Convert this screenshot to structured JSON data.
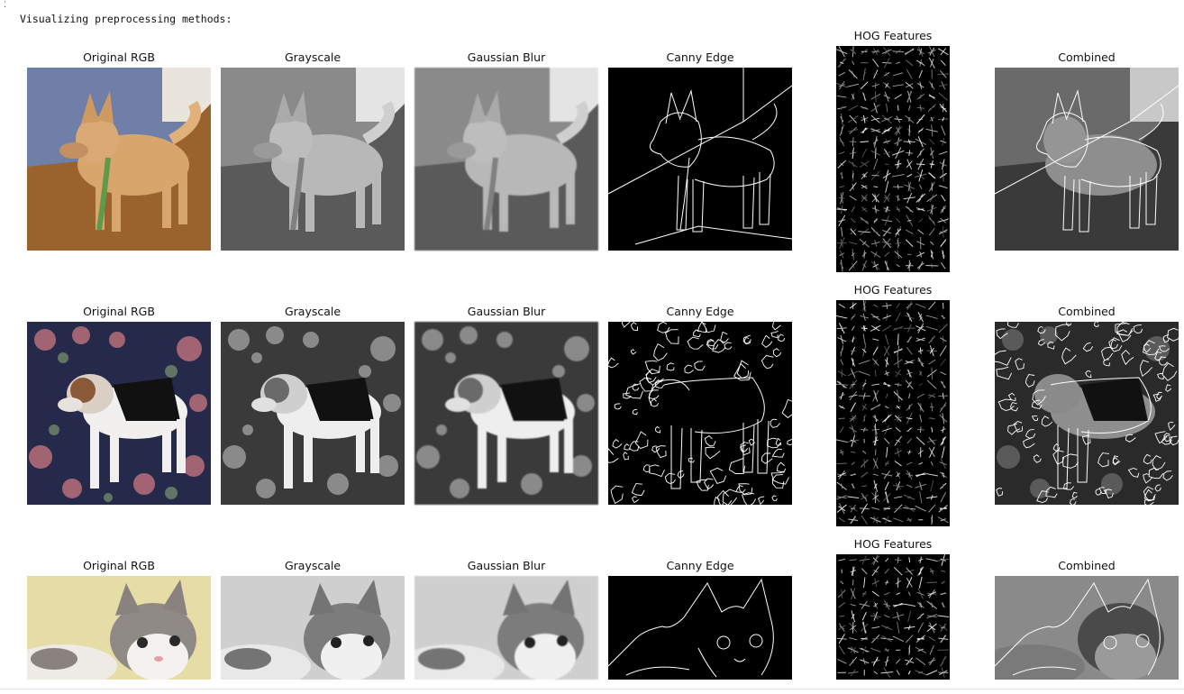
{
  "cell": {
    "marker": "⁚",
    "output_text": "Visualizing preprocessing methods:"
  },
  "figure_rows": [
    {
      "subject": "dog-standing",
      "titles": {
        "original": "Original RGB",
        "grayscale": "Grayscale",
        "blur": "Gaussian Blur",
        "canny": "Canny Edge",
        "hog": "HOG Features",
        "combined": "Combined"
      }
    },
    {
      "subject": "dog-floral",
      "titles": {
        "original": "Original RGB",
        "grayscale": "Grayscale",
        "blur": "Gaussian Blur",
        "canny": "Canny Edge",
        "hog": "HOG Features",
        "combined": "Combined"
      }
    },
    {
      "subject": "cat",
      "titles": {
        "original": "Original RGB",
        "grayscale": "Grayscale",
        "blur": "Gaussian Blur",
        "canny": "Canny Edge",
        "hog": "HOG Features",
        "combined": "Combined"
      }
    }
  ]
}
